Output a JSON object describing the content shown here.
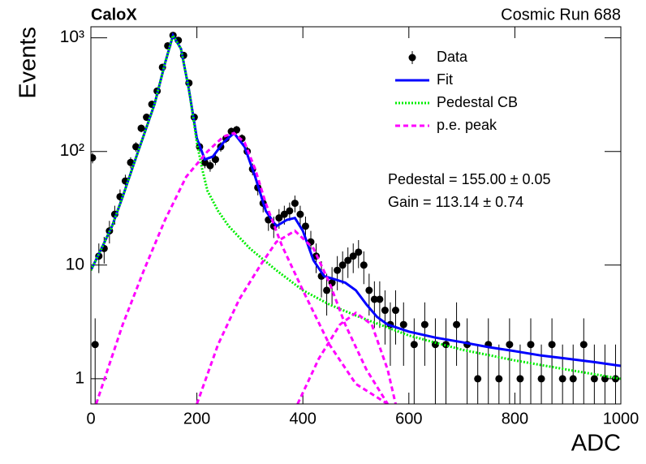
{
  "chart_data": {
    "type": "scatter",
    "title": "CaloX",
    "subtitle": "Cosmic Run 688",
    "x_label": "ADC",
    "y_label": "Events",
    "log_y": true,
    "xlim": [
      0,
      1000
    ],
    "ylim": [
      0.6,
      1250
    ],
    "xticks": [
      0,
      200,
      400,
      600,
      800,
      1000
    ],
    "yticks": [
      1,
      10,
      {
        "value": 100,
        "label": "10²"
      },
      {
        "value": 1000,
        "label": "10³"
      }
    ],
    "legend": "top-right",
    "annotations": [
      "Pedestal = 155.00 ± 0.05",
      "Gain = 113.14 ± 0.74"
    ],
    "series": [
      {
        "name": "Data",
        "style": "points",
        "color": "#000000",
        "x": [
          3,
          8,
          15,
          25,
          35,
          45,
          55,
          65,
          75,
          85,
          95,
          105,
          115,
          125,
          135,
          145,
          155,
          165,
          175,
          185,
          195,
          205,
          215,
          225,
          235,
          245,
          255,
          265,
          275,
          285,
          295,
          305,
          315,
          325,
          335,
          345,
          355,
          365,
          375,
          385,
          395,
          405,
          415,
          425,
          435,
          445,
          455,
          465,
          475,
          485,
          495,
          505,
          515,
          525,
          535,
          545,
          555,
          565,
          575,
          590,
          610,
          630,
          650,
          670,
          690,
          710,
          730,
          750,
          770,
          790,
          810,
          830,
          850,
          870,
          890,
          910,
          930,
          950,
          970,
          990
        ],
        "values": [
          88,
          2,
          12,
          14,
          20,
          28,
          40,
          55,
          80,
          110,
          160,
          200,
          260,
          340,
          550,
          850,
          1050,
          950,
          700,
          400,
          200,
          110,
          80,
          75,
          85,
          110,
          130,
          150,
          155,
          130,
          100,
          70,
          48,
          35,
          25,
          22,
          26,
          28,
          30,
          35,
          28,
          22,
          16,
          12,
          8,
          6,
          7,
          9,
          10,
          11,
          12,
          13,
          10,
          6,
          5,
          5,
          4,
          3,
          4,
          3,
          2,
          3,
          2,
          2,
          3,
          2,
          1,
          2,
          1,
          2,
          1,
          2,
          1,
          2,
          1,
          1,
          2,
          1,
          1,
          1
        ],
        "errors": [
          9.4,
          1.4,
          3.5,
          3.7,
          4.5,
          5.3,
          6.3,
          7.4,
          8.9,
          10.5,
          12.6,
          14.1,
          16.1,
          18.4,
          23.5,
          29.2,
          32.4,
          30.8,
          26.5,
          20,
          14.1,
          10.5,
          8.9,
          8.7,
          9.2,
          10.5,
          11.4,
          12.2,
          12.4,
          11.4,
          10,
          8.4,
          6.9,
          5.9,
          5,
          4.7,
          5.1,
          5.3,
          5.5,
          5.9,
          5.3,
          4.7,
          4,
          3.5,
          2.8,
          2.4,
          2.6,
          3,
          3.2,
          3.3,
          3.5,
          3.6,
          3.2,
          2.4,
          2.2,
          2.2,
          2,
          1.7,
          2,
          1.7,
          1.4,
          1.7,
          1.4,
          1.4,
          1.7,
          1.4,
          1,
          1.4,
          1,
          1.4,
          1,
          1.4,
          1,
          1.4,
          1,
          1,
          1.4,
          1,
          1,
          1
        ]
      },
      {
        "name": "Fit",
        "style": "line",
        "color": "#0000ff",
        "x": [
          0,
          20,
          40,
          60,
          80,
          100,
          120,
          140,
          155,
          170,
          185,
          200,
          215,
          230,
          250,
          270,
          290,
          310,
          330,
          350,
          370,
          385,
          400,
          420,
          440,
          460,
          480,
          500,
          520,
          540,
          560,
          600,
          650,
          700,
          750,
          800,
          850,
          900,
          950,
          1000
        ],
        "values": [
          9,
          14,
          22,
          40,
          75,
          140,
          260,
          600,
          1050,
          800,
          350,
          130,
          85,
          90,
          120,
          145,
          110,
          60,
          30,
          22,
          25,
          26,
          20,
          11,
          8,
          7.5,
          7,
          6,
          4.5,
          3.5,
          3,
          2.6,
          2.3,
          2.1,
          1.9,
          1.75,
          1.6,
          1.5,
          1.4,
          1.3
        ]
      },
      {
        "name": "Pedestal CB",
        "style": "dotted",
        "color": "#00ee00",
        "x": [
          0,
          20,
          40,
          60,
          80,
          100,
          120,
          140,
          155,
          170,
          185,
          200,
          210,
          220,
          240,
          260,
          300,
          350,
          400,
          450,
          500,
          600,
          700,
          800,
          900,
          1000
        ],
        "values": [
          9,
          14,
          22,
          40,
          75,
          140,
          260,
          600,
          1050,
          800,
          350,
          120,
          70,
          45,
          30,
          22,
          14,
          9,
          6,
          4.5,
          3.6,
          2.4,
          1.8,
          1.45,
          1.2,
          1.0
        ]
      },
      {
        "name": "p.e. peak",
        "style": "dashed",
        "color": "#ff00ff",
        "x": [
          10,
          60,
          100,
          140,
          180,
          220,
          250,
          270,
          290,
          310,
          330,
          360,
          400,
          450,
          500,
          560,
          null,
          200,
          240,
          280,
          320,
          350,
          385,
          420,
          450,
          480,
          520,
          560,
          null,
          390,
          430,
          470,
          500,
          530,
          560,
          575
        ],
        "values": [
          0.6,
          3,
          9,
          25,
          60,
          100,
          135,
          145,
          120,
          70,
          35,
          15,
          6,
          2,
          0.9,
          0.6,
          null,
          0.6,
          2,
          5,
          10,
          16,
          20,
          14,
          7,
          3,
          1.2,
          0.6,
          null,
          0.6,
          1.5,
          3,
          3.8,
          3,
          1.2,
          0.6
        ]
      }
    ]
  }
}
